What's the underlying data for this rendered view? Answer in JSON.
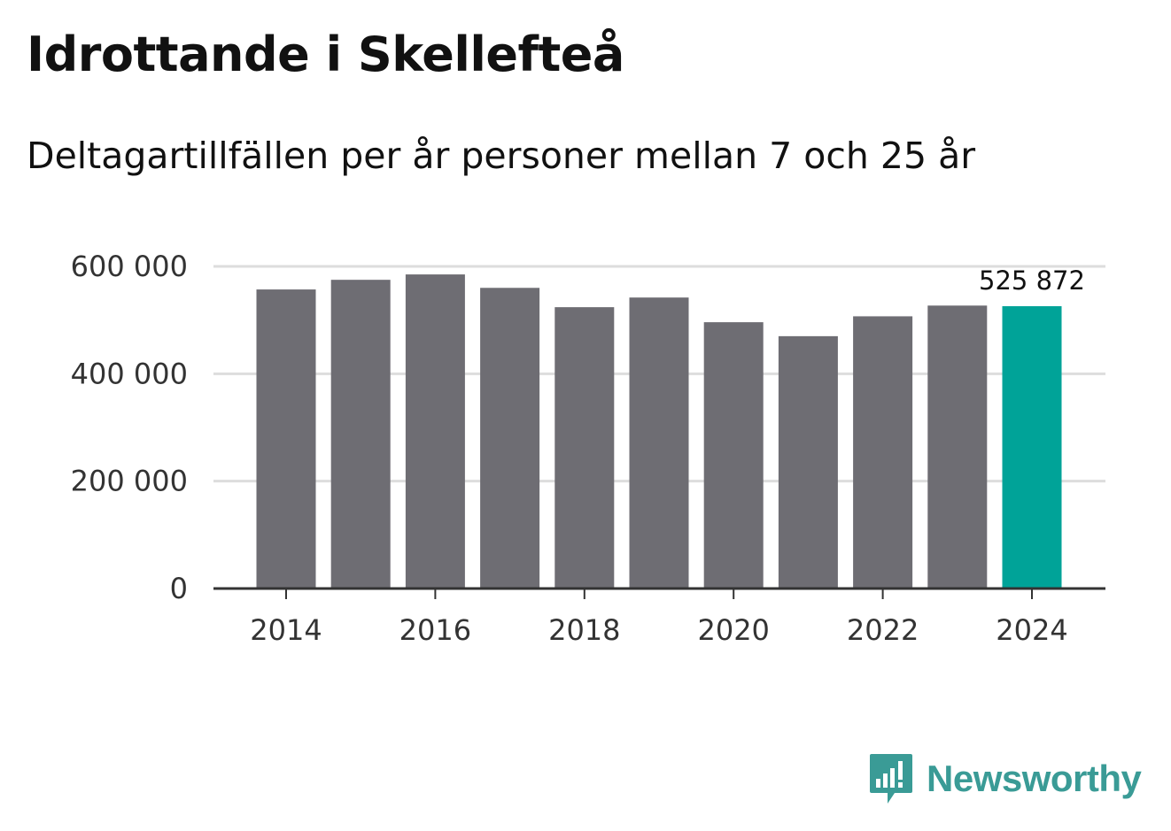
{
  "title": "Idrottande i Skellefteå",
  "subtitle": "Deltagartillfällen per år personer mellan 7 och 25 år",
  "brand": "Newsworthy",
  "colors": {
    "bar": "#6e6d73",
    "highlight": "#00a398",
    "grid": "#dddddd",
    "axis": "#333333",
    "brand": "#3a9b96"
  },
  "chart_data": {
    "type": "bar",
    "title": "Idrottande i Skellefteå",
    "subtitle": "Deltagartillfällen per år personer mellan 7 och 25 år",
    "xlabel": "",
    "ylabel": "",
    "categories": [
      "2014",
      "2015",
      "2016",
      "2017",
      "2018",
      "2019",
      "2020",
      "2021",
      "2022",
      "2023",
      "2024"
    ],
    "values": [
      557000,
      575000,
      585000,
      560000,
      524000,
      542000,
      496000,
      470000,
      507000,
      527000,
      525872
    ],
    "highlight_index": 10,
    "highlight_label": "525 872",
    "ylim": [
      0,
      600000
    ],
    "yticks": [
      0,
      200000,
      400000,
      600000
    ],
    "ytick_labels": [
      "0",
      "200 000",
      "400 000",
      "600 000"
    ],
    "xtick_labels": [
      "2014",
      "2016",
      "2018",
      "2020",
      "2022",
      "2024"
    ],
    "grid": true
  }
}
